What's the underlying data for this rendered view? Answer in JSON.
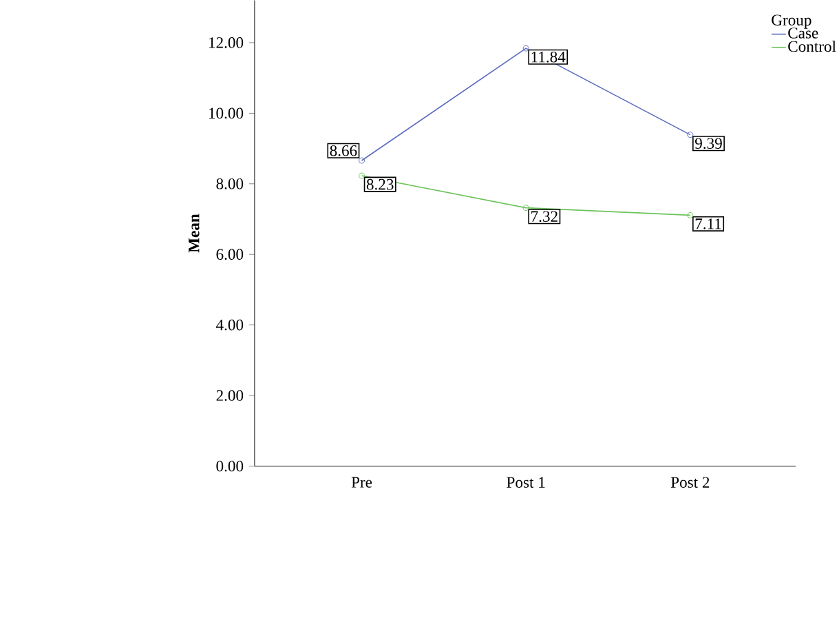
{
  "chart_data": {
    "type": "line",
    "ylabel": "Mean",
    "legend_title": "Group",
    "categories": [
      "Pre",
      "Post 1",
      "Post 2"
    ],
    "series": [
      {
        "name": "Case",
        "color": "#5a6bbf",
        "values": [
          8.66,
          11.84,
          9.39
        ]
      },
      {
        "name": "Control",
        "color": "#6cc35a",
        "values": [
          8.23,
          7.32,
          7.11
        ]
      }
    ],
    "ylim": [
      0,
      13.2
    ],
    "yticks": [
      {
        "value": 0,
        "label": "0.00"
      },
      {
        "value": 2,
        "label": "2.00"
      },
      {
        "value": 4,
        "label": "4.00"
      },
      {
        "value": 6,
        "label": "6.00"
      },
      {
        "value": 8,
        "label": "8.00"
      },
      {
        "value": 10,
        "label": "10.00"
      },
      {
        "value": 12,
        "label": "12.00"
      }
    ],
    "data_labels": true,
    "legend": "top right",
    "marker": "circle",
    "line_style": "solid",
    "grid": false
  }
}
